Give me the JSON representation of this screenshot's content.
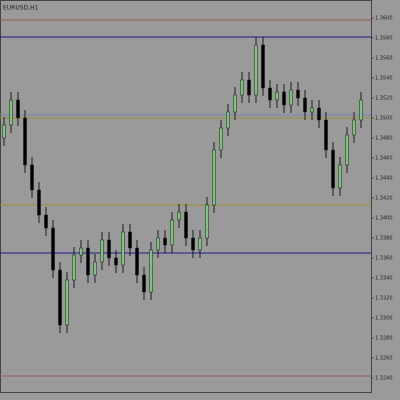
{
  "chart_data": {
    "type": "candlestick",
    "title": "EURUSD,H1",
    "open": [
      1.348,
      1.3493,
      1.3518,
      1.35,
      1.3453,
      1.3428,
      1.3403,
      1.339,
      1.3348,
      1.3293,
      1.3338,
      1.3363,
      1.337,
      1.3343,
      1.3356,
      1.3378,
      1.336,
      1.3353,
      1.3386,
      1.337,
      1.3343,
      1.3326,
      1.3368,
      1.338,
      1.3373,
      1.3398,
      1.3406,
      1.338,
      1.3368,
      1.338,
      1.3413,
      1.3468,
      1.349,
      1.3506,
      1.3523,
      1.3538,
      1.3523,
      1.3573,
      1.353,
      1.3518,
      1.3526,
      1.3513,
      1.3528,
      1.352,
      1.3506,
      1.351,
      1.3498,
      1.3468,
      1.343,
      1.3453,
      1.3483,
      1.3498
    ],
    "high": [
      1.3501,
      1.3526,
      1.3526,
      1.3508,
      1.3461,
      1.3436,
      1.3411,
      1.3398,
      1.3356,
      1.3346,
      1.3371,
      1.3378,
      1.3378,
      1.3364,
      1.3386,
      1.3386,
      1.3368,
      1.3394,
      1.3394,
      1.3378,
      1.3351,
      1.3376,
      1.3388,
      1.3388,
      1.3406,
      1.3414,
      1.3414,
      1.3388,
      1.3388,
      1.3421,
      1.3476,
      1.3498,
      1.3514,
      1.3531,
      1.3546,
      1.3546,
      1.3581,
      1.3581,
      1.3538,
      1.3534,
      1.3534,
      1.3536,
      1.3536,
      1.3528,
      1.3518,
      1.3518,
      1.3506,
      1.3476,
      1.3461,
      1.3491,
      1.3506,
      1.3526
    ],
    "low": [
      1.3472,
      1.3485,
      1.3492,
      1.3445,
      1.342,
      1.3395,
      1.3382,
      1.334,
      1.3285,
      1.3285,
      1.333,
      1.3355,
      1.3335,
      1.3335,
      1.3348,
      1.3352,
      1.3345,
      1.3345,
      1.3362,
      1.3335,
      1.3318,
      1.3318,
      1.336,
      1.3365,
      1.3365,
      1.339,
      1.3372,
      1.336,
      1.336,
      1.3372,
      1.3405,
      1.346,
      1.3482,
      1.3498,
      1.3515,
      1.3515,
      1.3515,
      1.3522,
      1.351,
      1.351,
      1.3505,
      1.3505,
      1.3512,
      1.3498,
      1.3498,
      1.349,
      1.346,
      1.3422,
      1.3422,
      1.3445,
      1.3475,
      1.349
    ],
    "close": [
      1.3493,
      1.3518,
      1.35,
      1.3453,
      1.3428,
      1.3403,
      1.339,
      1.3348,
      1.3293,
      1.3338,
      1.3363,
      1.337,
      1.3343,
      1.3356,
      1.3378,
      1.336,
      1.3353,
      1.3386,
      1.337,
      1.3343,
      1.3326,
      1.3368,
      1.338,
      1.3373,
      1.3398,
      1.3406,
      1.338,
      1.3368,
      1.338,
      1.3413,
      1.3468,
      1.349,
      1.3506,
      1.3523,
      1.3538,
      1.3523,
      1.3573,
      1.353,
      1.3518,
      1.3526,
      1.3513,
      1.3528,
      1.352,
      1.3506,
      1.351,
      1.3498,
      1.3468,
      1.343,
      1.3453,
      1.3483,
      1.3498,
      1.3518
    ],
    "up_color": "#7cc47c",
    "down_color": "#000000",
    "levels": [
      {
        "value": 1.3598,
        "color": "#b05050"
      },
      {
        "value": 1.3581,
        "color": "#1a1aa0"
      },
      {
        "value": 1.3503,
        "color": "#6f86b8"
      },
      {
        "value": 1.35,
        "color": "#a09020"
      },
      {
        "value": 1.3413,
        "color": "#a09020"
      },
      {
        "value": 1.3365,
        "color": "#1a1aa0"
      },
      {
        "value": 1.3242,
        "color": "#b05050"
      }
    ],
    "ylim": [
      1.323,
      1.361
    ],
    "yticks": [
      {
        "value": 1.324,
        "label": "1.3240"
      },
      {
        "value": 1.326,
        "label": "1.3260"
      },
      {
        "value": 1.328,
        "label": "1.3280"
      },
      {
        "value": 1.33,
        "label": "1.3300"
      },
      {
        "value": 1.332,
        "label": "1.3320"
      },
      {
        "value": 1.334,
        "label": "1.3340"
      },
      {
        "value": 1.336,
        "label": "1.3360"
      },
      {
        "value": 1.338,
        "label": "1.3380"
      },
      {
        "value": 1.34,
        "label": "1.3400"
      },
      {
        "value": 1.342,
        "label": "1.3420"
      },
      {
        "value": 1.344,
        "label": "1.3440"
      },
      {
        "value": 1.346,
        "label": "1.3460"
      },
      {
        "value": 1.348,
        "label": "1.3480"
      },
      {
        "value": 1.35,
        "label": "1.3500"
      },
      {
        "value": 1.352,
        "label": "1.3520"
      },
      {
        "value": 1.354,
        "label": "1.3540"
      },
      {
        "value": 1.356,
        "label": "1.3560"
      },
      {
        "value": 1.358,
        "label": "1.3580"
      },
      {
        "value": 1.36,
        "label": "1.3600"
      }
    ]
  }
}
